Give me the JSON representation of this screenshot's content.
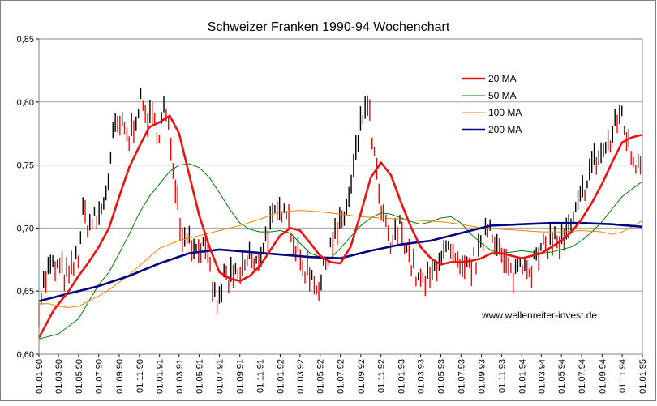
{
  "chart_data": {
    "type": "line",
    "title": "Schweizer Franken 1990-94 Wochenchart",
    "watermark": "www.wellenreiter-invest.de",
    "xlabel": "",
    "ylabel": "",
    "ylim": [
      0.6,
      0.85
    ],
    "y_ticks": [
      "0,60",
      "0,65",
      "0,70",
      "0,75",
      "0,80",
      "0,85"
    ],
    "x_ticks": [
      "01.01.90",
      "01.03.90",
      "01.05.90",
      "01.07.90",
      "01.09.90",
      "01.11.90",
      "01.01.91",
      "01.03.91",
      "01.05.91",
      "01.07.91",
      "01.09.91",
      "01.11.91",
      "01.01.92",
      "01.03.92",
      "01.05.92",
      "01.07.92",
      "01.09.92",
      "01.11.92",
      "01.01.93",
      "01.03.93",
      "01.05.93",
      "01.07.93",
      "01.09.93",
      "01.11.93",
      "01.01.94",
      "01.03.94",
      "01.05.94",
      "01.07.94",
      "01.09.94",
      "01.11.94",
      "01.01.95"
    ],
    "grid": "horizontal",
    "legend_position": "top-right",
    "colors": {
      "price": "#000000",
      "price_down": "#ff0000",
      "ma20": "#ee1111",
      "ma50": "#008000",
      "ma100": "#ff8000",
      "ma200": "#000080"
    },
    "price_anchors": [
      [
        "01.01.90",
        0.64
      ],
      [
        "15.01.90",
        0.655
      ],
      [
        "01.02.90",
        0.668
      ],
      [
        "01.03.90",
        0.668
      ],
      [
        "01.04.90",
        0.66
      ],
      [
        "01.05.90",
        0.68
      ],
      [
        "15.05.90",
        0.712
      ],
      [
        "01.06.90",
        0.703
      ],
      [
        "01.07.90",
        0.708
      ],
      [
        "15.07.90",
        0.72
      ],
      [
        "01.08.90",
        0.742
      ],
      [
        "15.08.90",
        0.775
      ],
      [
        "01.09.90",
        0.782
      ],
      [
        "01.10.90",
        0.77
      ],
      [
        "01.11.90",
        0.8
      ],
      [
        "15.11.90",
        0.793
      ],
      [
        "01.12.90",
        0.786
      ],
      [
        "01.01.91",
        0.778
      ],
      [
        "15.01.91",
        0.795
      ],
      [
        "01.02.91",
        0.77
      ],
      [
        "15.02.91",
        0.745
      ],
      [
        "01.03.91",
        0.712
      ],
      [
        "15.03.91",
        0.69
      ],
      [
        "01.04.91",
        0.7
      ],
      [
        "15.04.91",
        0.68
      ],
      [
        "01.05.91",
        0.69
      ],
      [
        "01.06.91",
        0.67
      ],
      [
        "15.06.91",
        0.645
      ],
      [
        "01.07.91",
        0.64
      ],
      [
        "15.07.91",
        0.662
      ],
      [
        "01.08.91",
        0.658
      ],
      [
        "01.09.91",
        0.662
      ],
      [
        "01.10.91",
        0.68
      ],
      [
        "15.10.91",
        0.665
      ],
      [
        "01.11.91",
        0.68
      ],
      [
        "01.12.91",
        0.702
      ],
      [
        "01.01.92",
        0.712
      ],
      [
        "15.01.92",
        0.725
      ],
      [
        "01.02.92",
        0.7
      ],
      [
        "01.03.92",
        0.672
      ],
      [
        "01.04.92",
        0.665
      ],
      [
        "01.05.92",
        0.652
      ],
      [
        "15.05.92",
        0.67
      ],
      [
        "01.06.92",
        0.69
      ],
      [
        "01.07.92",
        0.7
      ],
      [
        "15.07.92",
        0.712
      ],
      [
        "01.08.92",
        0.728
      ],
      [
        "15.08.92",
        0.755
      ],
      [
        "01.09.92",
        0.78
      ],
      [
        "15.09.92",
        0.8
      ],
      [
        "01.10.92",
        0.782
      ],
      [
        "15.10.92",
        0.748
      ],
      [
        "01.11.92",
        0.712
      ],
      [
        "15.11.92",
        0.7
      ],
      [
        "01.12.92",
        0.685
      ],
      [
        "01.01.93",
        0.702
      ],
      [
        "01.02.93",
        0.672
      ],
      [
        "01.03.93",
        0.655
      ],
      [
        "01.04.93",
        0.66
      ],
      [
        "01.05.93",
        0.682
      ],
      [
        "01.06.93",
        0.678
      ],
      [
        "01.07.93",
        0.662
      ],
      [
        "01.08.93",
        0.67
      ],
      [
        "01.09.93",
        0.682
      ],
      [
        "15.09.93",
        0.705
      ],
      [
        "01.10.93",
        0.702
      ],
      [
        "01.11.93",
        0.675
      ],
      [
        "01.12.93",
        0.662
      ],
      [
        "01.01.94",
        0.675
      ],
      [
        "01.02.94",
        0.67
      ],
      [
        "01.03.94",
        0.68
      ],
      [
        "01.04.94",
        0.692
      ],
      [
        "01.05.94",
        0.688
      ],
      [
        "01.06.94",
        0.7
      ],
      [
        "01.07.94",
        0.725
      ],
      [
        "15.07.94",
        0.738
      ],
      [
        "01.08.94",
        0.75
      ],
      [
        "01.09.94",
        0.76
      ],
      [
        "01.10.94",
        0.77
      ],
      [
        "15.10.94",
        0.785
      ],
      [
        "01.11.94",
        0.792
      ],
      [
        "15.11.94",
        0.77
      ],
      [
        "01.12.94",
        0.755
      ],
      [
        "15.12.94",
        0.752
      ],
      [
        "01.01.95",
        0.76
      ]
    ],
    "series": [
      {
        "name": "20 MA",
        "points": [
          [
            "01.01.90",
            0.613
          ],
          [
            "15.02.90",
            0.635
          ],
          [
            "01.04.90",
            0.65
          ],
          [
            "01.05.90",
            0.662
          ],
          [
            "01.06.90",
            0.673
          ],
          [
            "01.07.90",
            0.685
          ],
          [
            "01.08.90",
            0.7
          ],
          [
            "01.09.90",
            0.725
          ],
          [
            "01.10.90",
            0.748
          ],
          [
            "01.11.90",
            0.765
          ],
          [
            "01.12.90",
            0.78
          ],
          [
            "01.01.91",
            0.784
          ],
          [
            "01.02.91",
            0.789
          ],
          [
            "01.03.91",
            0.775
          ],
          [
            "01.04.91",
            0.742
          ],
          [
            "01.05.91",
            0.71
          ],
          [
            "01.06.91",
            0.685
          ],
          [
            "01.07.91",
            0.665
          ],
          [
            "01.08.91",
            0.66
          ],
          [
            "01.09.91",
            0.658
          ],
          [
            "01.10.91",
            0.662
          ],
          [
            "01.11.91",
            0.67
          ],
          [
            "01.12.91",
            0.682
          ],
          [
            "01.01.92",
            0.694
          ],
          [
            "01.02.92",
            0.7
          ],
          [
            "01.03.92",
            0.698
          ],
          [
            "01.04.92",
            0.688
          ],
          [
            "01.05.92",
            0.678
          ],
          [
            "01.06.92",
            0.673
          ],
          [
            "01.07.92",
            0.672
          ],
          [
            "01.08.92",
            0.685
          ],
          [
            "01.09.92",
            0.712
          ],
          [
            "01.10.92",
            0.74
          ],
          [
            "01.11.92",
            0.752
          ],
          [
            "01.12.92",
            0.742
          ],
          [
            "01.01.93",
            0.72
          ],
          [
            "01.02.93",
            0.7
          ],
          [
            "01.03.93",
            0.685
          ],
          [
            "01.04.93",
            0.676
          ],
          [
            "01.05.93",
            0.671
          ],
          [
            "01.06.93",
            0.673
          ],
          [
            "01.07.93",
            0.673
          ],
          [
            "01.08.93",
            0.674
          ],
          [
            "01.09.93",
            0.676
          ],
          [
            "01.10.93",
            0.68
          ],
          [
            "01.11.93",
            0.68
          ],
          [
            "01.12.93",
            0.678
          ],
          [
            "01.01.94",
            0.676
          ],
          [
            "01.02.94",
            0.678
          ],
          [
            "01.03.94",
            0.68
          ],
          [
            "01.04.94",
            0.685
          ],
          [
            "01.05.94",
            0.69
          ],
          [
            "01.06.94",
            0.697
          ],
          [
            "01.07.94",
            0.707
          ],
          [
            "01.08.94",
            0.72
          ],
          [
            "01.09.94",
            0.735
          ],
          [
            "01.10.94",
            0.752
          ],
          [
            "01.11.94",
            0.768
          ],
          [
            "01.12.94",
            0.772
          ],
          [
            "01.01.95",
            0.774
          ]
        ]
      },
      {
        "name": "50 MA",
        "points": [
          [
            "01.01.90",
            0.612
          ],
          [
            "01.03.90",
            0.616
          ],
          [
            "01.05.90",
            0.628
          ],
          [
            "01.06.90",
            0.642
          ],
          [
            "01.07.90",
            0.655
          ],
          [
            "01.08.90",
            0.665
          ],
          [
            "01.09.90",
            0.68
          ],
          [
            "01.10.90",
            0.695
          ],
          [
            "01.11.90",
            0.712
          ],
          [
            "01.12.90",
            0.725
          ],
          [
            "01.01.91",
            0.735
          ],
          [
            "01.02.91",
            0.745
          ],
          [
            "01.03.91",
            0.75
          ],
          [
            "01.04.91",
            0.751
          ],
          [
            "01.05.91",
            0.748
          ],
          [
            "01.06.91",
            0.74
          ],
          [
            "01.07.91",
            0.728
          ],
          [
            "01.08.91",
            0.715
          ],
          [
            "01.09.91",
            0.704
          ],
          [
            "01.10.91",
            0.699
          ],
          [
            "01.11.91",
            0.697
          ],
          [
            "01.12.91",
            0.697
          ],
          [
            "01.01.92",
            0.698
          ],
          [
            "01.02.92",
            0.696
          ],
          [
            "01.03.92",
            0.688
          ],
          [
            "01.04.92",
            0.68
          ],
          [
            "01.05.92",
            0.677
          ],
          [
            "01.06.92",
            0.676
          ],
          [
            "01.07.92",
            0.684
          ],
          [
            "01.08.92",
            0.693
          ],
          [
            "01.09.92",
            0.702
          ],
          [
            "01.10.92",
            0.708
          ],
          [
            "01.11.92",
            0.712
          ],
          [
            "01.12.92",
            0.711
          ],
          [
            "01.01.93",
            0.708
          ],
          [
            "01.02.93",
            0.705
          ],
          [
            "01.03.93",
            0.703
          ],
          [
            "01.04.93",
            0.705
          ],
          [
            "01.05.93",
            0.708
          ],
          [
            "01.06.93",
            0.709
          ],
          [
            "01.07.93",
            0.704
          ],
          [
            "01.08.93",
            0.695
          ],
          [
            "01.09.93",
            0.688
          ],
          [
            "01.10.93",
            0.682
          ],
          [
            "01.11.93",
            0.68
          ],
          [
            "01.12.93",
            0.681
          ],
          [
            "01.01.94",
            0.682
          ],
          [
            "01.02.94",
            0.681
          ],
          [
            "01.03.94",
            0.68
          ],
          [
            "01.04.94",
            0.681
          ],
          [
            "01.05.94",
            0.683
          ],
          [
            "01.06.94",
            0.685
          ],
          [
            "01.07.94",
            0.69
          ],
          [
            "01.08.94",
            0.697
          ],
          [
            "01.09.94",
            0.705
          ],
          [
            "01.10.94",
            0.715
          ],
          [
            "01.11.94",
            0.725
          ],
          [
            "01.12.94",
            0.731
          ],
          [
            "01.01.95",
            0.737
          ]
        ]
      },
      {
        "name": "100 MA",
        "points": [
          [
            "01.01.90",
            0.64
          ],
          [
            "01.02.90",
            0.64
          ],
          [
            "01.03.90",
            0.638
          ],
          [
            "01.04.90",
            0.637
          ],
          [
            "01.05.90",
            0.638
          ],
          [
            "01.06.90",
            0.642
          ],
          [
            "01.07.90",
            0.646
          ],
          [
            "01.08.90",
            0.651
          ],
          [
            "01.09.90",
            0.657
          ],
          [
            "01.10.90",
            0.663
          ],
          [
            "01.11.90",
            0.67
          ],
          [
            "01.12.90",
            0.677
          ],
          [
            "01.01.91",
            0.684
          ],
          [
            "01.03.91",
            0.69
          ],
          [
            "01.05.91",
            0.694
          ],
          [
            "01.07.91",
            0.698
          ],
          [
            "01.09.91",
            0.702
          ],
          [
            "01.11.91",
            0.707
          ],
          [
            "01.01.92",
            0.713
          ],
          [
            "01.03.92",
            0.714
          ],
          [
            "01.05.92",
            0.713
          ],
          [
            "01.07.92",
            0.711
          ],
          [
            "01.09.92",
            0.709
          ],
          [
            "01.11.92",
            0.708
          ],
          [
            "01.01.93",
            0.707
          ],
          [
            "01.03.93",
            0.706
          ],
          [
            "01.05.93",
            0.705
          ],
          [
            "01.07.93",
            0.703
          ],
          [
            "01.09.93",
            0.7
          ],
          [
            "01.11.93",
            0.699
          ],
          [
            "01.01.94",
            0.698
          ],
          [
            "01.03.94",
            0.697
          ],
          [
            "01.05.94",
            0.697
          ],
          [
            "01.07.94",
            0.698
          ],
          [
            "01.09.94",
            0.697
          ],
          [
            "01.10.94",
            0.695
          ],
          [
            "01.11.94",
            0.697
          ],
          [
            "01.12.94",
            0.701
          ],
          [
            "01.01.95",
            0.706
          ]
        ]
      },
      {
        "name": "200 MA",
        "points": [
          [
            "01.01.90",
            0.642
          ],
          [
            "01.04.90",
            0.648
          ],
          [
            "01.07.90",
            0.654
          ],
          [
            "01.10.90",
            0.662
          ],
          [
            "01.01.91",
            0.672
          ],
          [
            "01.04.91",
            0.68
          ],
          [
            "01.07.91",
            0.683
          ],
          [
            "01.10.91",
            0.681
          ],
          [
            "01.01.92",
            0.679
          ],
          [
            "01.04.92",
            0.677
          ],
          [
            "01.07.92",
            0.676
          ],
          [
            "01.10.92",
            0.682
          ],
          [
            "01.01.93",
            0.687
          ],
          [
            "01.04.93",
            0.69
          ],
          [
            "01.07.93",
            0.696
          ],
          [
            "01.10.93",
            0.702
          ],
          [
            "01.01.94",
            0.703
          ],
          [
            "01.04.94",
            0.704
          ],
          [
            "01.07.94",
            0.704
          ],
          [
            "01.10.94",
            0.703
          ],
          [
            "01.01.95",
            0.701
          ]
        ]
      }
    ]
  }
}
